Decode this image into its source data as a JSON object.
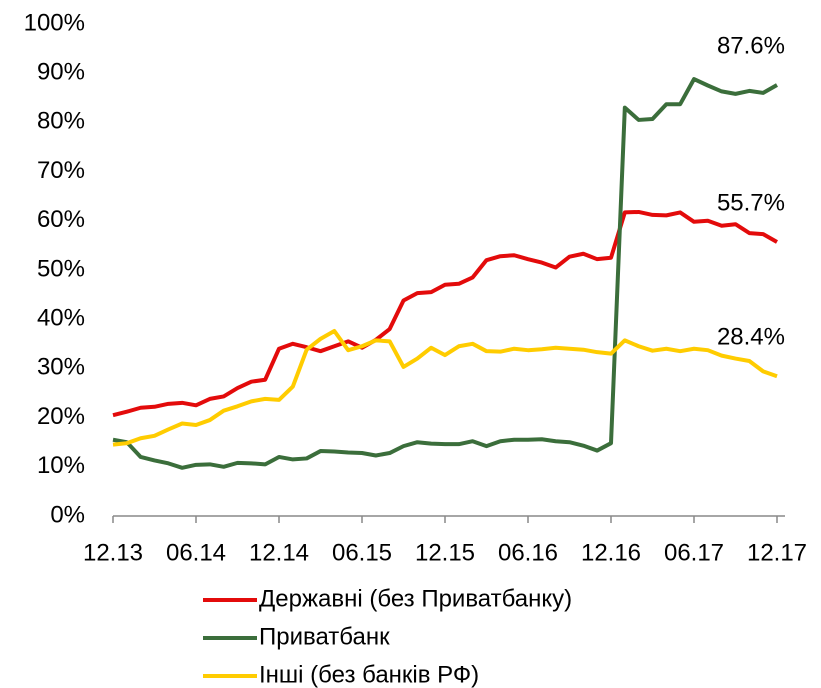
{
  "chart_data": {
    "type": "line",
    "categories": [
      "12.13",
      null,
      null,
      null,
      null,
      null,
      "06.14",
      null,
      null,
      null,
      null,
      null,
      "12.14",
      null,
      null,
      null,
      null,
      null,
      "06.15",
      null,
      null,
      null,
      null,
      null,
      "12.15",
      null,
      null,
      null,
      null,
      null,
      "06.16",
      null,
      null,
      null,
      null,
      null,
      "12.16",
      null,
      null,
      null,
      null,
      null,
      "06.17",
      null,
      null,
      null,
      null,
      null,
      "12.17"
    ],
    "series": [
      {
        "name": "Державні (без Приватбанку)",
        "color": "#e30b0b",
        "end_label": "55.7%",
        "values": [
          20.5,
          21.2,
          22,
          22.2,
          22.8,
          23,
          22.5,
          23.8,
          24.3,
          26,
          27.3,
          27.7,
          34,
          35,
          34.3,
          33.5,
          34.5,
          35.5,
          34.2,
          35.8,
          38,
          43.8,
          45.3,
          45.5,
          47,
          47.2,
          48.5,
          52,
          52.8,
          53,
          52.2,
          51.5,
          50.5,
          52.7,
          53.3,
          52.2,
          52.5,
          61.7,
          61.8,
          61.2,
          61.1,
          61.7,
          59.8,
          60,
          59,
          59.3,
          57.5,
          57.3,
          55.7
        ]
      },
      {
        "name": "Приватбанк",
        "color": "#3b6e3b",
        "end_label": "87.6%",
        "values": [
          15.5,
          15,
          12,
          11.3,
          10.7,
          9.8,
          10.4,
          10.5,
          10,
          10.8,
          10.7,
          10.5,
          12,
          11.5,
          11.7,
          13.2,
          13.1,
          12.9,
          12.8,
          12.3,
          12.8,
          14.2,
          15,
          14.7,
          14.6,
          14.6,
          15.2,
          14.2,
          15.2,
          15.5,
          15.5,
          15.6,
          15.2,
          15,
          14.3,
          13.3,
          14.8,
          83,
          80.5,
          80.7,
          83.7,
          83.7,
          88.8,
          87.5,
          86.3,
          85.8,
          86.4,
          86,
          87.6
        ]
      },
      {
        "name": "Інші (без банків РФ)",
        "color": "#ffcc00",
        "end_label": "28.4%",
        "values": [
          14.5,
          14.8,
          15.8,
          16.3,
          17.6,
          18.8,
          18.5,
          19.5,
          21.4,
          22.3,
          23.3,
          23.8,
          23.6,
          26.3,
          33.8,
          36,
          37.6,
          33.7,
          34.5,
          35.7,
          35.5,
          30.3,
          32,
          34.2,
          32.7,
          34.5,
          35,
          33.5,
          33.4,
          34,
          33.7,
          33.9,
          34.2,
          34,
          33.8,
          33.3,
          33,
          35.7,
          34.5,
          33.6,
          34,
          33.5,
          34,
          33.7,
          32.6,
          32,
          31.5,
          29.4,
          28.4
        ]
      }
    ],
    "ylim": [
      0,
      100
    ],
    "yticks": [
      {
        "value": 0,
        "label": "0%"
      },
      {
        "value": 10,
        "label": "10%"
      },
      {
        "value": 20,
        "label": "20%"
      },
      {
        "value": 30,
        "label": "30%"
      },
      {
        "value": 40,
        "label": "40%"
      },
      {
        "value": 50,
        "label": "50%"
      },
      {
        "value": 60,
        "label": "60%"
      },
      {
        "value": 70,
        "label": "70%"
      },
      {
        "value": 80,
        "label": "80%"
      },
      {
        "value": 90,
        "label": "90%"
      },
      {
        "value": 100,
        "label": "100%"
      }
    ],
    "grid": false,
    "legend": "bottom"
  }
}
